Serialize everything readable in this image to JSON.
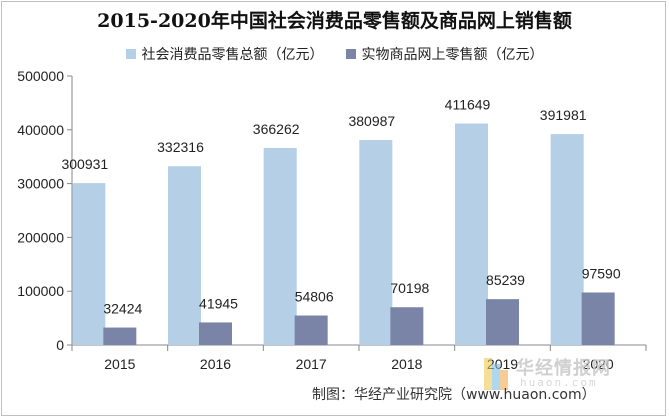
{
  "chart_data": {
    "type": "bar",
    "title": "2015-2020年中国社会消费品零售额及商品网上销售额",
    "categories": [
      "2015",
      "2016",
      "2017",
      "2018",
      "2019",
      "2020"
    ],
    "series": [
      {
        "name": "社会消费品零售总额（亿元）",
        "color": "#b4cfe6",
        "values": [
          300931,
          332316,
          366262,
          380987,
          411649,
          391981
        ]
      },
      {
        "name": "实物商品网上零售额（亿元）",
        "color": "#7a84a6",
        "values": [
          32424,
          41945,
          54806,
          70198,
          85239,
          97590
        ]
      }
    ],
    "ylim": [
      0,
      500000
    ],
    "yticks": [
      "0",
      "100000",
      "200000",
      "300000",
      "400000",
      "500000"
    ],
    "grid": false,
    "legend_position": "top"
  },
  "credit": "制图：华经产业研究院（www.huaon.com）",
  "watermark": {
    "text": "华经情报网",
    "sub": "huaon.com"
  }
}
